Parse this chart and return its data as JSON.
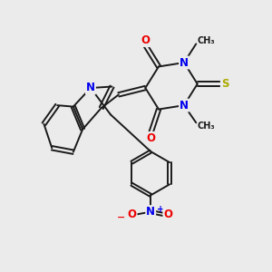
{
  "background_color": "#ebebeb",
  "bond_color": "#1a1a1a",
  "atom_colors": {
    "N": "#0000ee",
    "O": "#ee0000",
    "S": "#aaaa00",
    "C": "#1a1a1a"
  },
  "figsize": [
    3.0,
    3.0
  ],
  "dpi": 100
}
